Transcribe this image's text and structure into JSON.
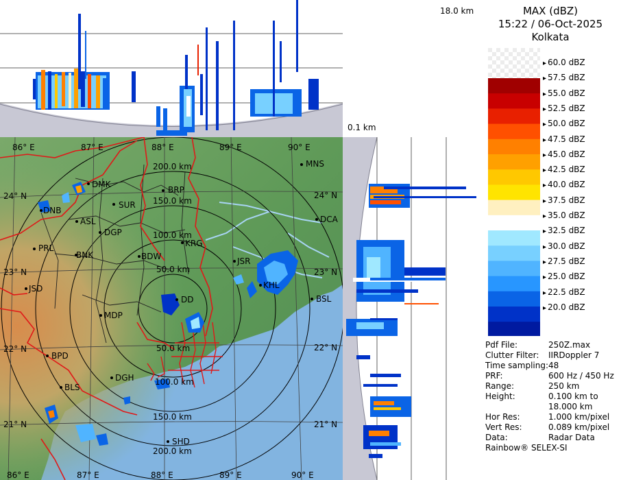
{
  "product": {
    "title": "MAX (dBZ)",
    "timestamp": "15:22 / 06-Oct-2025",
    "station": "Kolkata"
  },
  "section_labels": {
    "top_height": "18.0 km",
    "min_height": "0.1 km"
  },
  "legend": {
    "labels": [
      "60.0 dBZ",
      "57.5 dBZ",
      "55.0 dBZ",
      "52.5 dBZ",
      "50.0 dBZ",
      "47.5 dBZ",
      "45.0 dBZ",
      "42.5 dBZ",
      "40.0 dBZ",
      "37.5 dBZ",
      "35.0 dBZ",
      "32.5 dBZ",
      "30.0 dBZ",
      "27.5 dBZ",
      "25.0 dBZ",
      "22.5 dBZ",
      "20.0 dBZ"
    ],
    "colors": [
      "#a00000",
      "#c80000",
      "#e82000",
      "#ff5000",
      "#ff8000",
      "#ffa000",
      "#ffc800",
      "#ffe400",
      "#fff0c0",
      "#ffffff",
      "#a0e8ff",
      "#78d0ff",
      "#50b4ff",
      "#2896ff",
      "#0a64e6",
      "#0032c8",
      "#001aa0"
    ]
  },
  "map": {
    "lon_labels": [
      "86° E",
      "87° E",
      "88° E",
      "89° E",
      "90° E"
    ],
    "lat_labels": [
      "24° N",
      "23° N",
      "22° N",
      "21° N"
    ],
    "range_labels": [
      "200.0 km",
      "150.0 km",
      "100.0 km",
      "50.0 km",
      "50.0 km",
      "100.0 km",
      "150.0 km",
      "200.0 km"
    ],
    "cities": [
      "MNS",
      "DMK",
      "BRP",
      "DNB",
      "SUR",
      "ASL",
      "DCA",
      "DGP",
      "KRG",
      "PRL",
      "BNK",
      "BDW",
      "JSR",
      "KHL",
      "JSD",
      "DD",
      "BSL",
      "MDP",
      "BPD",
      "DGH",
      "BLS",
      "SHD"
    ]
  },
  "info": {
    "rows": [
      {
        "key": "Pdf File:",
        "value": "250Z.max"
      },
      {
        "key": "Clutter Filter:",
        "value": "IIRDoppler 7"
      },
      {
        "key": "Time sampling:",
        "value": "48"
      },
      {
        "key": "PRF:",
        "value": "600 Hz / 450 Hz"
      },
      {
        "key": "Range:",
        "value": "250 km"
      },
      {
        "key": "Height:",
        "value": "0.100 km to"
      },
      {
        "key": "",
        "value": "18.000 km"
      },
      {
        "key": "Hor Res:",
        "value": "1.000 km/pixel"
      },
      {
        "key": "Vert Res:",
        "value": "0.089 km/pixel"
      },
      {
        "key": "Data:",
        "value": "Radar Data"
      }
    ],
    "footer": "Rainbow® SELEX-SI"
  }
}
